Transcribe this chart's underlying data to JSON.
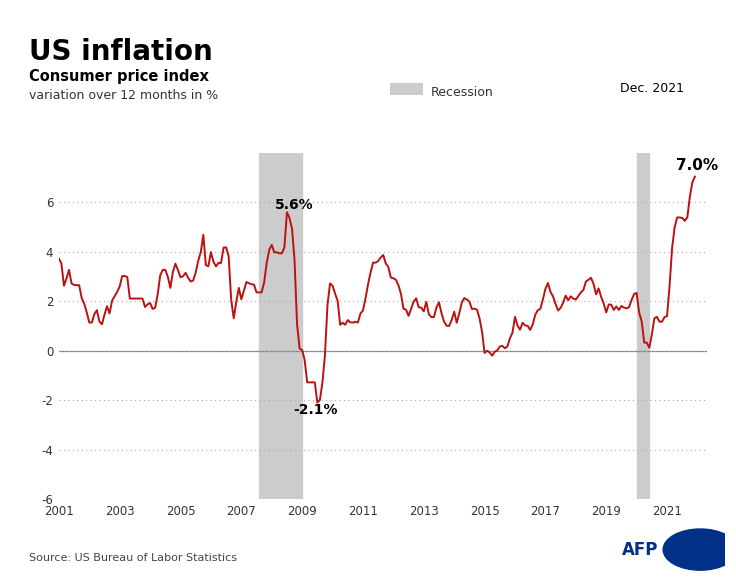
{
  "title": "US inflation",
  "subtitle": "Consumer price index",
  "subtitle2": "variation over 12 months in %",
  "recession_label": "Recession",
  "source": "Source: US Bureau of Labor Statistics",
  "watermark": "AFP",
  "annotation_peak": "5.6%",
  "annotation_trough": "-2.1%",
  "annotation_end_label": "Dec. 2021",
  "annotation_end_value": "7.0%",
  "recession1_start": 2007.583,
  "recession1_end": 2009.0,
  "recession2_start": 2020.0,
  "recession2_end": 2020.417,
  "line_color": "#bb1111",
  "recession_color": "#cccccc",
  "background_color": "#ffffff",
  "grid_color": "#aaaaaa",
  "zero_line_color": "#888888",
  "ylim": [
    -6,
    8
  ],
  "yticks": [
    -6,
    -4,
    -2,
    0,
    2,
    4,
    6
  ],
  "xticks": [
    2001,
    2003,
    2005,
    2007,
    2009,
    2011,
    2013,
    2015,
    2017,
    2019,
    2021
  ],
  "data_x": [
    2001.0,
    2001.083,
    2001.167,
    2001.25,
    2001.333,
    2001.417,
    2001.5,
    2001.583,
    2001.667,
    2001.75,
    2001.833,
    2001.917,
    2002.0,
    2002.083,
    2002.167,
    2002.25,
    2002.333,
    2002.417,
    2002.5,
    2002.583,
    2002.667,
    2002.75,
    2002.833,
    2002.917,
    2003.0,
    2003.083,
    2003.167,
    2003.25,
    2003.333,
    2003.417,
    2003.5,
    2003.583,
    2003.667,
    2003.75,
    2003.833,
    2003.917,
    2004.0,
    2004.083,
    2004.167,
    2004.25,
    2004.333,
    2004.417,
    2004.5,
    2004.583,
    2004.667,
    2004.75,
    2004.833,
    2004.917,
    2005.0,
    2005.083,
    2005.167,
    2005.25,
    2005.333,
    2005.417,
    2005.5,
    2005.583,
    2005.667,
    2005.75,
    2005.833,
    2005.917,
    2006.0,
    2006.083,
    2006.167,
    2006.25,
    2006.333,
    2006.417,
    2006.5,
    2006.583,
    2006.667,
    2006.75,
    2006.833,
    2006.917,
    2007.0,
    2007.083,
    2007.167,
    2007.25,
    2007.333,
    2007.417,
    2007.5,
    2007.583,
    2007.667,
    2007.75,
    2007.833,
    2007.917,
    2008.0,
    2008.083,
    2008.167,
    2008.25,
    2008.333,
    2008.417,
    2008.5,
    2008.583,
    2008.667,
    2008.75,
    2008.833,
    2008.917,
    2009.0,
    2009.083,
    2009.167,
    2009.25,
    2009.333,
    2009.417,
    2009.5,
    2009.583,
    2009.667,
    2009.75,
    2009.833,
    2009.917,
    2010.0,
    2010.083,
    2010.167,
    2010.25,
    2010.333,
    2010.417,
    2010.5,
    2010.583,
    2010.667,
    2010.75,
    2010.833,
    2010.917,
    2011.0,
    2011.083,
    2011.167,
    2011.25,
    2011.333,
    2011.417,
    2011.5,
    2011.583,
    2011.667,
    2011.75,
    2011.833,
    2011.917,
    2012.0,
    2012.083,
    2012.167,
    2012.25,
    2012.333,
    2012.417,
    2012.5,
    2012.583,
    2012.667,
    2012.75,
    2012.833,
    2012.917,
    2013.0,
    2013.083,
    2013.167,
    2013.25,
    2013.333,
    2013.417,
    2013.5,
    2013.583,
    2013.667,
    2013.75,
    2013.833,
    2013.917,
    2014.0,
    2014.083,
    2014.167,
    2014.25,
    2014.333,
    2014.417,
    2014.5,
    2014.583,
    2014.667,
    2014.75,
    2014.833,
    2014.917,
    2015.0,
    2015.083,
    2015.167,
    2015.25,
    2015.333,
    2015.417,
    2015.5,
    2015.583,
    2015.667,
    2015.75,
    2015.833,
    2015.917,
    2016.0,
    2016.083,
    2016.167,
    2016.25,
    2016.333,
    2016.417,
    2016.5,
    2016.583,
    2016.667,
    2016.75,
    2016.833,
    2016.917,
    2017.0,
    2017.083,
    2017.167,
    2017.25,
    2017.333,
    2017.417,
    2017.5,
    2017.583,
    2017.667,
    2017.75,
    2017.833,
    2017.917,
    2018.0,
    2018.083,
    2018.167,
    2018.25,
    2018.333,
    2018.417,
    2018.5,
    2018.583,
    2018.667,
    2018.75,
    2018.833,
    2018.917,
    2019.0,
    2019.083,
    2019.167,
    2019.25,
    2019.333,
    2019.417,
    2019.5,
    2019.583,
    2019.667,
    2019.75,
    2019.833,
    2019.917,
    2020.0,
    2020.083,
    2020.167,
    2020.25,
    2020.333,
    2020.417,
    2020.5,
    2020.583,
    2020.667,
    2020.75,
    2020.833,
    2020.917,
    2021.0,
    2021.083,
    2021.167,
    2021.25,
    2021.333,
    2021.417,
    2021.5,
    2021.583,
    2021.667,
    2021.75,
    2021.833,
    2021.917
  ],
  "data_y": [
    3.73,
    3.53,
    2.63,
    2.92,
    3.27,
    2.72,
    2.66,
    2.65,
    2.65,
    2.13,
    1.9,
    1.55,
    1.14,
    1.14,
    1.48,
    1.64,
    1.18,
    1.07,
    1.46,
    1.8,
    1.51,
    2.03,
    2.2,
    2.38,
    2.6,
    3.02,
    3.02,
    2.98,
    2.11,
    2.11,
    2.11,
    2.11,
    2.11,
    2.11,
    1.77,
    1.88,
    1.93,
    1.69,
    1.74,
    2.29,
    3.05,
    3.27,
    3.27,
    2.99,
    2.54,
    3.19,
    3.52,
    3.26,
    2.97,
    3.01,
    3.15,
    2.95,
    2.8,
    2.84,
    3.17,
    3.64,
    3.99,
    4.69,
    3.46,
    3.42,
    3.99,
    3.6,
    3.41,
    3.55,
    3.55,
    4.17,
    4.18,
    3.82,
    2.06,
    1.31,
    1.97,
    2.54,
    2.08,
    2.42,
    2.78,
    2.73,
    2.69,
    2.67,
    2.36,
    2.36,
    2.36,
    2.76,
    3.54,
    4.08,
    4.28,
    3.98,
    3.98,
    3.94,
    3.94,
    4.18,
    5.6,
    5.37,
    4.94,
    3.66,
    1.07,
    0.09,
    0.03,
    -0.38,
    -1.28,
    -1.28,
    -1.28,
    -1.28,
    -2.1,
    -1.99,
    -1.29,
    -0.18,
    1.84,
    2.72,
    2.63,
    2.31,
    2.02,
    1.05,
    1.13,
    1.05,
    1.24,
    1.15,
    1.14,
    1.17,
    1.14,
    1.5,
    1.63,
    2.11,
    2.68,
    3.16,
    3.57,
    3.56,
    3.63,
    3.77,
    3.87,
    3.53,
    3.39,
    2.96,
    2.93,
    2.87,
    2.65,
    2.3,
    1.7,
    1.66,
    1.41,
    1.69,
    1.99,
    2.12,
    1.76,
    1.74,
    1.59,
    1.98,
    1.47,
    1.36,
    1.36,
    1.75,
    1.96,
    1.52,
    1.18,
    1.01,
    1.0,
    1.24,
    1.58,
    1.13,
    1.51,
    1.95,
    2.13,
    2.07,
    1.99,
    1.69,
    1.7,
    1.66,
    1.32,
    0.76,
    -0.09,
    0.0,
    -0.07,
    -0.2,
    -0.04,
    0.01,
    0.17,
    0.2,
    0.1,
    0.17,
    0.5,
    0.73,
    1.37,
    1.02,
    0.85,
    1.13,
    1.02,
    1.01,
    0.84,
    1.06,
    1.46,
    1.64,
    1.69,
    2.07,
    2.5,
    2.74,
    2.38,
    2.2,
    1.9,
    1.63,
    1.73,
    1.94,
    2.23,
    2.04,
    2.2,
    2.11,
    2.07,
    2.21,
    2.36,
    2.46,
    2.8,
    2.87,
    2.95,
    2.7,
    2.28,
    2.52,
    2.18,
    1.91,
    1.55,
    1.87,
    1.86,
    1.65,
    1.79,
    1.65,
    1.81,
    1.75,
    1.71,
    1.76,
    2.05,
    2.29,
    2.34,
    1.54,
    1.18,
    0.33,
    0.33,
    0.12,
    0.65,
    1.31,
    1.37,
    1.18,
    1.17,
    1.36,
    1.4,
    2.62,
    4.16,
    4.99,
    5.39,
    5.39,
    5.37,
    5.25,
    5.39,
    6.22,
    6.81,
    7.04
  ]
}
